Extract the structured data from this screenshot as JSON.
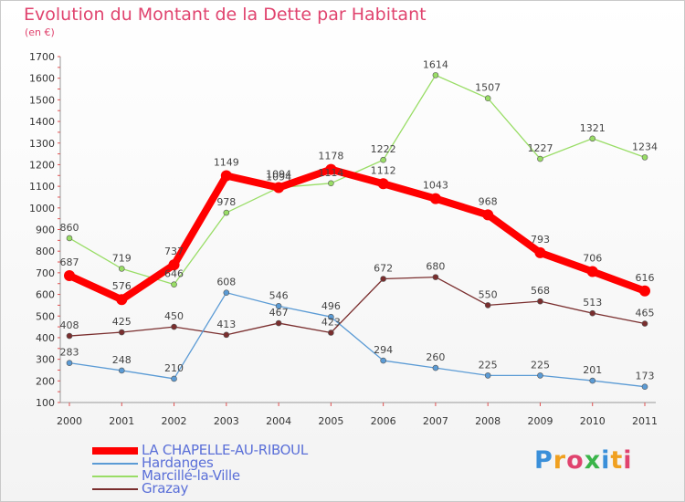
{
  "title": "Evolution du Montant de la Dette par Habitant",
  "subtitle": "(en €)",
  "logo": "Proxiti",
  "chart_data": {
    "type": "line",
    "title": "Evolution du Montant de la Dette par Habitant",
    "ylabel": "(en €)",
    "xlabel": "",
    "ylim": [
      100,
      1700
    ],
    "yticks": [
      100,
      200,
      300,
      400,
      500,
      600,
      700,
      800,
      900,
      1000,
      1100,
      1200,
      1300,
      1400,
      1500,
      1600,
      1700
    ],
    "categories": [
      "2000",
      "2001",
      "2002",
      "2003",
      "2004",
      "2005",
      "2006",
      "2007",
      "2008",
      "2009",
      "2010",
      "2011"
    ],
    "grid": false,
    "legend_position": "bottom-left",
    "series": [
      {
        "name": "LA CHAPELLE-AU-RIBOUL",
        "color": "#ff0000",
        "values": [
          687,
          576,
          737,
          1149,
          1094,
          1178,
          1112,
          1043,
          968,
          793,
          706,
          616
        ]
      },
      {
        "name": "Hardanges",
        "color": "#5b9bd5",
        "values": [
          283,
          248,
          210,
          608,
          546,
          496,
          294,
          260,
          225,
          225,
          201,
          173
        ]
      },
      {
        "name": "Marcillé-la-Ville",
        "color": "#99dd66",
        "values": [
          860,
          719,
          646,
          978,
          1094,
          1114,
          1222,
          1614,
          1507,
          1227,
          1321,
          1234
        ]
      },
      {
        "name": "Grazay",
        "color": "#7a2e2e",
        "values": [
          408,
          425,
          450,
          413,
          467,
          423,
          672,
          680,
          550,
          568,
          513,
          465
        ]
      }
    ]
  }
}
